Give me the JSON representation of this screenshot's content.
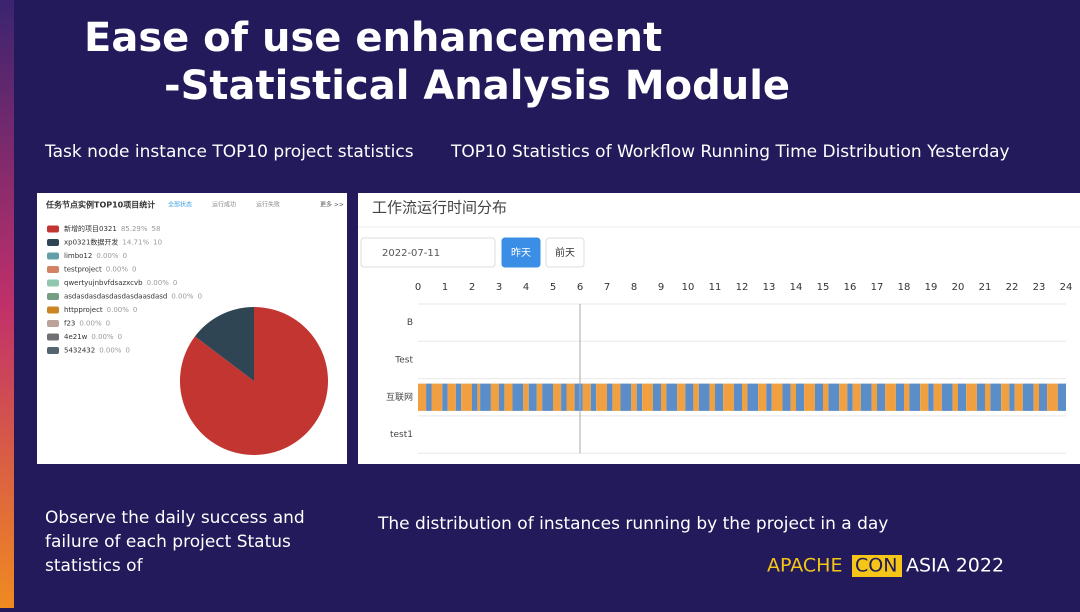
{
  "slide": {
    "title": "Ease of use enhancement",
    "subtitle": "-Statistical Analysis Module",
    "caption_left": "Task node instance TOP10 project statistics",
    "caption_right": "TOP10 Statistics of Workflow Running Time Distribution Yesterday",
    "note_left": [
      "Observe the daily success and",
      "failure of each project Status",
      "statistics of"
    ],
    "note_right": "The distribution of instances running by the project in a day",
    "footer": {
      "apache": "APACHE",
      "con": "CON",
      "asia": "ASIA 2022"
    }
  },
  "chart_data": [
    {
      "type": "pie",
      "title": "任务节点实例TOP10项目统计",
      "tabs": [
        "全部状态",
        "运行成功",
        "运行失败"
      ],
      "more": "更多 >>",
      "categories": [
        "新增的项目0321",
        "xp0321数据开发",
        "limbo12",
        "testproject",
        "qwertyujnbvfdsazxcvb",
        "asdasdasdasdasdasdaasdasd",
        "httpproject",
        "f23",
        "4e21w",
        "5432432"
      ],
      "shares": [
        "85.29%",
        "14.71%",
        "0.00%",
        "0.00%",
        "0.00%",
        "0.00%",
        "0.00%",
        "0.00%",
        "0.00%",
        "0.00%"
      ],
      "values": [
        58,
        10,
        0,
        0,
        0,
        0,
        0,
        0,
        0,
        0
      ],
      "colors": [
        "#c23531",
        "#2f4554",
        "#61a0a8",
        "#d48265",
        "#91c7ae",
        "#749f83",
        "#ca8622",
        "#bda29a",
        "#6e7074",
        "#546570"
      ]
    },
    {
      "type": "gantt",
      "title": "工作流运行时间分布",
      "date": "2022-07-11",
      "buttons": [
        "昨天",
        "前天"
      ],
      "categories": [
        "B",
        "Test",
        "互联网",
        "test1"
      ],
      "xlim": [
        0,
        24
      ],
      "xticks": [
        0,
        1,
        2,
        3,
        4,
        5,
        6,
        7,
        8,
        9,
        10,
        11,
        12,
        13,
        14,
        15,
        16,
        17,
        18,
        19,
        20,
        21,
        22,
        23,
        24
      ],
      "marker_x": 6,
      "colors": [
        "#f0a040",
        "#5b8ec9"
      ],
      "boundaries": [
        [],
        [],
        [
          0,
          0.3,
          0.5,
          0.9,
          1.1,
          1.4,
          1.6,
          2.0,
          2.2,
          2.3,
          2.7,
          3.0,
          3.2,
          3.5,
          3.9,
          4.1,
          4.4,
          4.6,
          5.0,
          5.3,
          5.5,
          5.8,
          6.1,
          6.4,
          6.6,
          7.0,
          7.2,
          7.5,
          7.9,
          8.1,
          8.3,
          8.7,
          9.0,
          9.2,
          9.6,
          9.9,
          10.2,
          10.4,
          10.8,
          11.0,
          11.3,
          11.7,
          12.0,
          12.2,
          12.6,
          12.9,
          13.1,
          13.5,
          13.8,
          14.0,
          14.3,
          14.7,
          15.0,
          15.2,
          15.6,
          15.9,
          16.1,
          16.4,
          16.8,
          17.0,
          17.3,
          17.7,
          18.0,
          18.2,
          18.6,
          18.9,
          19.1,
          19.4,
          19.8,
          20.0,
          20.3,
          20.7,
          21.0,
          21.2,
          21.6,
          21.9,
          22.1,
          22.4,
          22.8,
          23.0,
          23.3,
          23.7,
          24.0
        ],
        []
      ]
    }
  ]
}
